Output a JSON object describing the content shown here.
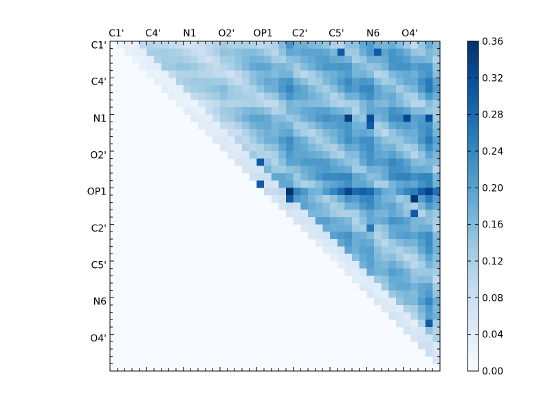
{
  "chart_data": {
    "type": "heatmap",
    "title": "",
    "xlabel": "",
    "ylabel": "",
    "grid": false,
    "n": 45,
    "x_tick_labels": [
      "C1'",
      "C4'",
      "N1",
      "O2'",
      "OP1",
      "C2'",
      "C5'",
      "N6",
      "O4'"
    ],
    "y_tick_labels": [
      "C1'",
      "C4'",
      "N1",
      "O2'",
      "OP1",
      "C2'",
      "C5'",
      "N6",
      "O4'"
    ],
    "tick_label_index": [
      0,
      5,
      10,
      15,
      20,
      25,
      30,
      35,
      40
    ],
    "triangle": "upper",
    "colormap": "Blues",
    "colorbar": {
      "min": 0.0,
      "max": 0.36,
      "tick_labels": [
        "0.00",
        "0.04",
        "0.08",
        "0.12",
        "0.16",
        "0.20",
        "0.24",
        "0.28",
        "0.32",
        "0.36"
      ],
      "placement": "right"
    },
    "row_bands": [
      0.06,
      0.1,
      0.1,
      0.12,
      0.07,
      0.11,
      0.12,
      0.09,
      0.04,
      0.1,
      0.13,
      0.1,
      0.08,
      0.11,
      0.09,
      0.09,
      0.13,
      0.11,
      0.16,
      0.1,
      0.24,
      0.12,
      0.1,
      0.05,
      0.1,
      0.06,
      0.1,
      0.07,
      0.06,
      0.04,
      0.05,
      0.07,
      0.04,
      0.06,
      0.04,
      0.08,
      0.05,
      0.09,
      0.04,
      0.07,
      0.06,
      0.08,
      0.05,
      0.06,
      0.03
    ],
    "col_bands": [
      0.03,
      0.04,
      0.03,
      0.04,
      0.03,
      0.05,
      0.04,
      0.05,
      0.04,
      0.05,
      0.05,
      0.05,
      0.04,
      0.05,
      0.06,
      0.09,
      0.07,
      0.08,
      0.1,
      0.13,
      0.14,
      0.15,
      0.13,
      0.18,
      0.22,
      0.17,
      0.17,
      0.16,
      0.17,
      0.18,
      0.17,
      0.19,
      0.22,
      0.17,
      0.21,
      0.23,
      0.17,
      0.16,
      0.21,
      0.2,
      0.19,
      0.16,
      0.21,
      0.26,
      0.16
    ],
    "hot_cells": [
      {
        "row": 20,
        "col": 24,
        "value": 0.36
      },
      {
        "row": 20,
        "col": 32,
        "value": 0.33
      },
      {
        "row": 10,
        "col": 32,
        "value": 0.34
      },
      {
        "row": 10,
        "col": 35,
        "value": 0.32
      },
      {
        "row": 10,
        "col": 40,
        "value": 0.33
      },
      {
        "row": 10,
        "col": 43,
        "value": 0.32
      },
      {
        "row": 21,
        "col": 41,
        "value": 0.35
      },
      {
        "row": 23,
        "col": 41,
        "value": 0.3
      },
      {
        "row": 25,
        "col": 35,
        "value": 0.26
      },
      {
        "row": 21,
        "col": 24,
        "value": 0.3
      },
      {
        "row": 19,
        "col": 20,
        "value": 0.3
      },
      {
        "row": 16,
        "col": 20,
        "value": 0.3
      },
      {
        "row": 38,
        "col": 43,
        "value": 0.3
      },
      {
        "row": 1,
        "col": 31,
        "value": 0.3
      },
      {
        "row": 1,
        "col": 36,
        "value": 0.3
      },
      {
        "row": 11,
        "col": 35,
        "value": 0.3
      },
      {
        "row": 0,
        "col": 24,
        "value": 0.22
      }
    ]
  }
}
